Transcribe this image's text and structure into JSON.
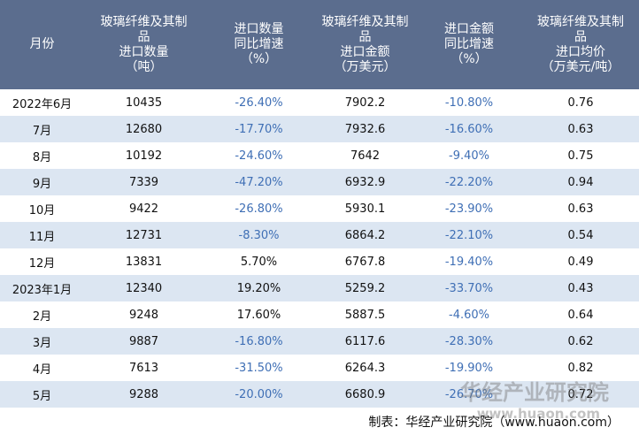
{
  "table": {
    "header": [
      "月份",
      "玻璃纤维及其制\n品\n进口数量\n（吨）",
      "进口数量\n同比增速\n（%）",
      "玻璃纤维及其制\n品\n进口金额\n（万美元）",
      "进口金额\n同比增速\n（%）",
      "玻璃纤维及其制\n品\n进口均价\n（万美元/吨）"
    ],
    "rows": [
      [
        "2022年6月",
        "10435",
        "-26.40%",
        "7902.2",
        "-10.80%",
        "0.76"
      ],
      [
        "7月",
        "12680",
        "-17.70%",
        "7932.6",
        "-16.60%",
        "0.63"
      ],
      [
        "8月",
        "10192",
        "-24.60%",
        "7642",
        "-9.40%",
        "0.75"
      ],
      [
        "9月",
        "7339",
        "-47.20%",
        "6932.9",
        "-22.20%",
        "0.94"
      ],
      [
        "10月",
        "9422",
        "-26.80%",
        "5930.1",
        "-23.90%",
        "0.63"
      ],
      [
        "11月",
        "12731",
        "-8.30%",
        "6864.2",
        "-22.10%",
        "0.54"
      ],
      [
        "12月",
        "13831",
        "5.70%",
        "6767.8",
        "-19.40%",
        "0.49"
      ],
      [
        "2023年1月",
        "12340",
        "19.20%",
        "5259.2",
        "-33.70%",
        "0.43"
      ],
      [
        "2月",
        "9248",
        "17.60%",
        "5887.5",
        "-4.60%",
        "0.64"
      ],
      [
        "3月",
        "9887",
        "-16.80%",
        "6117.6",
        "-28.30%",
        "0.62"
      ],
      [
        "4月",
        "7613",
        "-31.50%",
        "6264.3",
        "-19.90%",
        "0.82"
      ],
      [
        "5月",
        "9288",
        "-20.00%",
        "6680.9",
        "-26.70%",
        "0.72"
      ]
    ]
  },
  "watermark": {
    "name": "华经产业研究院",
    "url": "www.huaon.com"
  },
  "footer": "制表：华经产业研究院（www.huaon.com）"
}
